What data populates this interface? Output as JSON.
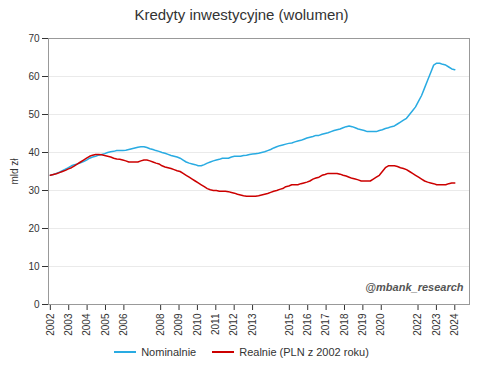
{
  "chart_data": {
    "type": "line",
    "title": "Kredyty inwestycyjne (wolumen)",
    "ylabel": "mld zł",
    "annotations": [
      "@mbank_research"
    ],
    "x": [
      2002,
      2002.1642,
      2002.3284,
      2002.4925,
      2002.6567,
      2002.8209,
      2002.9851,
      2003.1493,
      2003.3134,
      2003.4776,
      2003.6418,
      2003.806,
      2003.9701,
      2004.1343,
      2004.2985,
      2004.4627,
      2004.6269,
      2004.791,
      2004.9552,
      2005.1194,
      2005.2836,
      2005.4478,
      2005.6119,
      2005.7761,
      2005.9403,
      2006.1045,
      2006.2687,
      2006.4328,
      2006.597,
      2006.7612,
      2006.9254,
      2007.0896,
      2007.2537,
      2007.4179,
      2007.5821,
      2007.7463,
      2007.9104,
      2008.0746,
      2008.2388,
      2008.403,
      2008.5672,
      2008.7313,
      2008.8955,
      2009.0597,
      2009.2239,
      2009.3881,
      2009.5522,
      2009.7164,
      2009.8806,
      2010.0448,
      2010.209,
      2010.3731,
      2010.5373,
      2010.7015,
      2010.8657,
      2011.0299,
      2011.194,
      2011.3582,
      2011.5224,
      2011.6866,
      2011.8507,
      2012.0149,
      2012.1791,
      2012.3433,
      2012.5075,
      2012.6716,
      2012.8358,
      2013,
      2013.1642,
      2013.3284,
      2013.4925,
      2013.6567,
      2013.8209,
      2013.9851,
      2014.1493,
      2014.3134,
      2014.4776,
      2014.6418,
      2014.806,
      2014.9701,
      2015.1343,
      2015.2985,
      2015.4627,
      2015.6269,
      2015.791,
      2015.9552,
      2016.1194,
      2016.2836,
      2016.4478,
      2016.6119,
      2016.7761,
      2016.9403,
      2017.1045,
      2017.2687,
      2017.4328,
      2017.597,
      2017.7612,
      2017.9254,
      2018.0896,
      2018.2537,
      2018.4179,
      2018.5821,
      2018.7463,
      2018.9104,
      2019.0746,
      2019.2388,
      2019.403,
      2019.5672,
      2019.7313,
      2019.8955,
      2020.0597,
      2020.2239,
      2020.3881,
      2020.5522,
      2020.7164,
      2020.8806,
      2021.0448,
      2021.209,
      2021.3731,
      2021.5373,
      2021.7015,
      2021.8657,
      2022.0299,
      2022.194,
      2022.3582,
      2022.5224,
      2022.6866,
      2022.8507,
      2023.0149,
      2023.1791,
      2023.3433,
      2023.5075,
      2023.6716,
      2023.8358,
      2024
    ],
    "series": [
      {
        "name": "Nominalnie",
        "color": "#29ABE2",
        "values": [
          34.0,
          34.2,
          34.5,
          34.8,
          35.2,
          35.6,
          36.0,
          36.5,
          36.8,
          37.0,
          37.3,
          37.6,
          38.0,
          38.5,
          38.8,
          39.0,
          39.3,
          39.5,
          39.7,
          40.0,
          40.2,
          40.3,
          40.5,
          40.5,
          40.5,
          40.6,
          40.8,
          41.0,
          41.2,
          41.4,
          41.5,
          41.5,
          41.3,
          41.0,
          40.8,
          40.5,
          40.3,
          40.0,
          39.8,
          39.5,
          39.2,
          39.0,
          38.8,
          38.5,
          38.0,
          37.5,
          37.2,
          37.0,
          36.8,
          36.5,
          36.5,
          36.8,
          37.2,
          37.5,
          37.8,
          38.0,
          38.2,
          38.5,
          38.5,
          38.5,
          38.8,
          39.0,
          39.0,
          39.0,
          39.2,
          39.3,
          39.5,
          39.6,
          39.7,
          39.8,
          40.0,
          40.2,
          40.5,
          40.8,
          41.2,
          41.5,
          41.8,
          42.0,
          42.2,
          42.4,
          42.5,
          42.8,
          43.0,
          43.2,
          43.5,
          43.8,
          44.0,
          44.2,
          44.5,
          44.5,
          44.8,
          45.0,
          45.2,
          45.5,
          45.8,
          46.0,
          46.2,
          46.5,
          46.8,
          47.0,
          46.8,
          46.5,
          46.2,
          46.0,
          45.8,
          45.5,
          45.5,
          45.5,
          45.5,
          45.8,
          46.0,
          46.3,
          46.5,
          46.8,
          47.0,
          47.5,
          48.0,
          48.5,
          49.0,
          50.0,
          51.0,
          52.0,
          53.5,
          55.0,
          57.0,
          59.0,
          61.0,
          63.0,
          63.5,
          63.5,
          63.2,
          63.0,
          62.5,
          62.0,
          61.8
        ]
      },
      {
        "name": "Realnie (PLN z 2002 roku)",
        "color": "#CC0000",
        "values": [
          34.0,
          34.2,
          34.4,
          34.7,
          35.0,
          35.3,
          35.7,
          36.0,
          36.5,
          37.0,
          37.5,
          38.0,
          38.5,
          39.0,
          39.3,
          39.5,
          39.5,
          39.4,
          39.2,
          39.0,
          38.8,
          38.5,
          38.3,
          38.2,
          38.0,
          37.8,
          37.5,
          37.5,
          37.5,
          37.5,
          37.8,
          38.0,
          38.0,
          37.8,
          37.5,
          37.2,
          37.0,
          36.5,
          36.2,
          36.0,
          35.8,
          35.5,
          35.2,
          35.0,
          34.5,
          34.0,
          33.5,
          33.0,
          32.5,
          32.0,
          31.5,
          31.0,
          30.5,
          30.2,
          30.0,
          30.0,
          29.8,
          29.8,
          29.8,
          29.7,
          29.5,
          29.3,
          29.0,
          28.8,
          28.6,
          28.5,
          28.5,
          28.5,
          28.5,
          28.6,
          28.8,
          29.0,
          29.2,
          29.5,
          29.8,
          30.0,
          30.3,
          30.5,
          31.0,
          31.2,
          31.5,
          31.5,
          31.5,
          31.8,
          32.0,
          32.2,
          32.5,
          33.0,
          33.3,
          33.5,
          34.0,
          34.2,
          34.5,
          34.5,
          34.5,
          34.5,
          34.3,
          34.0,
          33.8,
          33.5,
          33.2,
          33.0,
          32.8,
          32.5,
          32.5,
          32.5,
          32.5,
          33.0,
          33.5,
          34.0,
          35.0,
          36.0,
          36.5,
          36.5,
          36.5,
          36.3,
          36.0,
          35.8,
          35.5,
          35.0,
          34.5,
          34.0,
          33.5,
          33.0,
          32.5,
          32.2,
          32.0,
          31.8,
          31.5,
          31.5,
          31.5,
          31.5,
          31.8,
          32.0,
          32.0
        ]
      }
    ],
    "xlim": [
      2001.9,
      2024.8
    ],
    "xticks": [
      2002,
      2003,
      2004,
      2005,
      2006,
      2008,
      2009,
      2010,
      2011,
      2012,
      2013,
      2015,
      2016,
      2017,
      2018,
      2019,
      2020,
      2022,
      2023,
      2024
    ],
    "ylim": [
      0,
      70
    ],
    "yticks": [
      0,
      10,
      20,
      30,
      40,
      50,
      60,
      70
    ],
    "grid": true,
    "legend": "bottom"
  }
}
